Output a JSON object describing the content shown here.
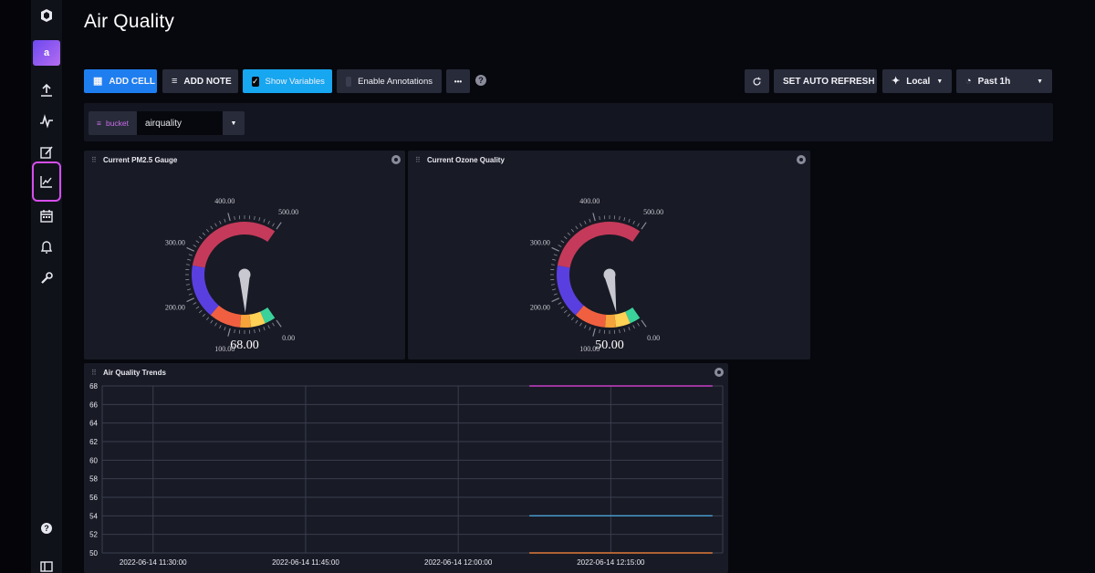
{
  "page": {
    "title": "Air Quality"
  },
  "sidebar": {
    "org_initial": "a",
    "items": [
      {
        "icon": "influx-logo-icon"
      },
      {
        "icon": "upload-icon"
      },
      {
        "icon": "pulse-icon"
      },
      {
        "icon": "edit-icon"
      },
      {
        "icon": "chart-icon",
        "active": true
      },
      {
        "icon": "calendar-icon"
      },
      {
        "icon": "bell-icon"
      },
      {
        "icon": "wrench-icon"
      },
      {
        "icon": "help-icon"
      },
      {
        "icon": "collapse-icon"
      }
    ]
  },
  "toolbar": {
    "add_cell": "ADD CELL",
    "add_note": "ADD NOTE",
    "show_variables": "Show Variables",
    "enable_annotations": "Enable Annotations",
    "more": "•••",
    "help": "?",
    "auto_refresh": "SET AUTO REFRESH",
    "timezone": "Local",
    "time_range": "Past 1h"
  },
  "variables": {
    "name": "bucket",
    "value": "airquality"
  },
  "cells": {
    "gauge_pm25": {
      "title": "Current PM2.5 Gauge",
      "value": "68.00"
    },
    "gauge_ozone": {
      "title": "Current Ozone Quality",
      "value": "50.00"
    },
    "trends": {
      "title": "Air Quality Trends"
    }
  },
  "gauge": {
    "min": 0,
    "max": 500,
    "tick_labels": [
      "0.00",
      "100.00",
      "200.00",
      "300.00",
      "400.00",
      "500.00"
    ],
    "pm25_value": 68,
    "ozone_value": 50,
    "colors": {
      "green": "#3ad29a",
      "yellow": "#ffd255",
      "orange": "#f5a33a",
      "red_orange": "#f06040",
      "purple": "#5a3fe0",
      "crimson": "#c53a5a"
    }
  },
  "chart_data": {
    "type": "line",
    "title": "Air Quality Trends",
    "x_tick_labels": [
      "2022-06-14 11:30:00",
      "2022-06-14 11:45:00",
      "2022-06-14 12:00:00",
      "2022-06-14 12:15:00"
    ],
    "y_tick_labels": [
      "68",
      "66",
      "64",
      "62",
      "60",
      "58",
      "56",
      "54",
      "52",
      "50"
    ],
    "ylim": [
      50,
      68
    ],
    "x_range": [
      "2022-06-14 11:25:00",
      "2022-06-14 12:26:00"
    ],
    "grid": true,
    "series": [
      {
        "color": "#c83fc8",
        "x": [
          "2022-06-14 12:07:00",
          "2022-06-14 12:25:00"
        ],
        "values": [
          68,
          68
        ]
      },
      {
        "color": "#4aa3d8",
        "x": [
          "2022-06-14 12:07:00",
          "2022-06-14 12:25:00"
        ],
        "values": [
          54,
          54
        ]
      },
      {
        "color": "#e07a3a",
        "x": [
          "2022-06-14 12:07:00",
          "2022-06-14 12:25:00"
        ],
        "values": [
          50,
          50
        ]
      }
    ]
  }
}
